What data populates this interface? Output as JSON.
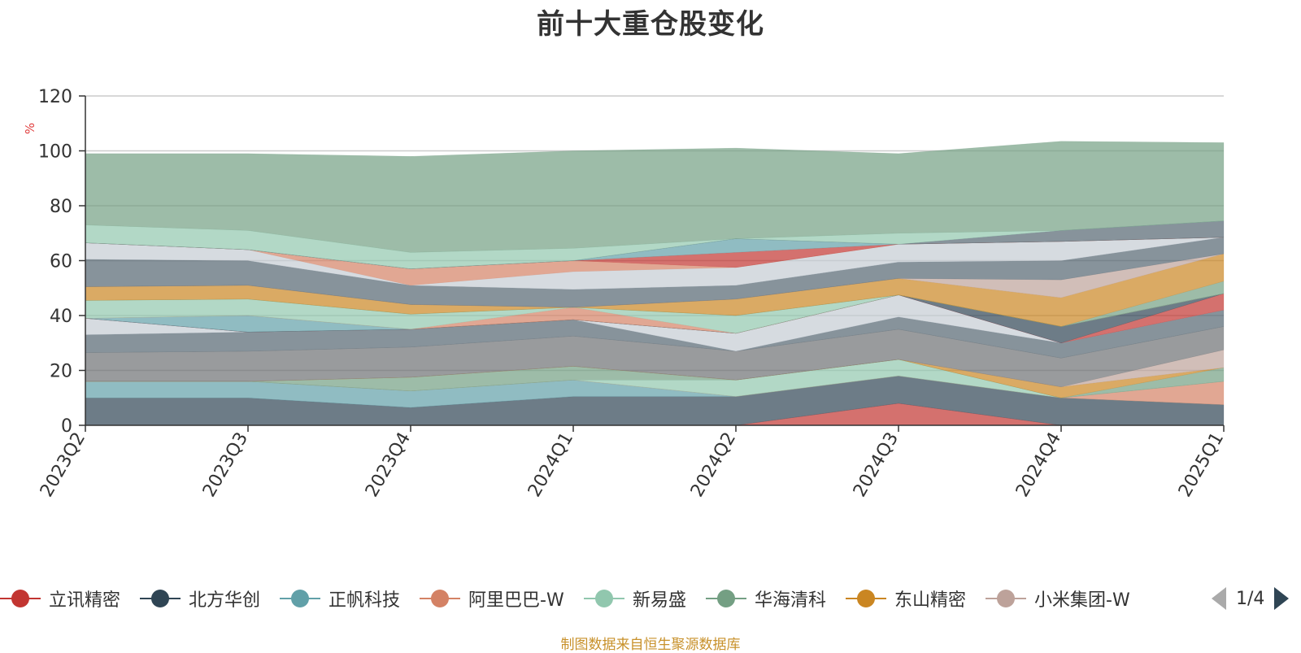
{
  "page": {
    "title": "前十大重仓股变化",
    "source": "制图数据来自恒生聚源数据库",
    "legend_pager": "1/4"
  },
  "colors": {
    "grid": "#cccccc",
    "axis": "#333333",
    "unit": "#e03c3c"
  },
  "chart_data": {
    "type": "area",
    "stacked": true,
    "title": "前十大重仓股变化",
    "x": [
      "2023Q2",
      "2023Q3",
      "2023Q4",
      "2024Q1",
      "2024Q2",
      "2024Q3",
      "2024Q4",
      "2025Q1"
    ],
    "y_unit": "%",
    "ylim": [
      0,
      120
    ],
    "yticks": [
      0,
      20,
      40,
      60,
      80,
      100,
      120
    ],
    "grid": true,
    "legend_position": "bottom",
    "series": [
      {
        "name": "立讯精密",
        "color": "#c23531",
        "values": [
          0,
          0,
          0,
          0,
          0,
          8,
          0,
          0
        ]
      },
      {
        "name": "北方华创",
        "color": "#2f4554",
        "values": [
          10,
          10,
          6.5,
          10.5,
          10.5,
          10,
          10,
          7.5
        ]
      },
      {
        "name": "正帆科技",
        "color": "#61a0a8",
        "values": [
          6,
          6,
          6,
          6,
          0,
          0,
          0,
          0
        ]
      },
      {
        "name": "阿里巴巴-W",
        "color": "#d48265",
        "values": [
          0,
          0,
          0,
          0,
          0,
          0,
          0,
          8.5
        ]
      },
      {
        "name": "新易盛",
        "color": "#91c7ae",
        "values": [
          0,
          0,
          0,
          0,
          6,
          6,
          0,
          0
        ]
      },
      {
        "name": "华海清科",
        "color": "#749f83",
        "values": [
          0,
          0,
          5,
          5,
          0,
          0,
          0,
          5
        ]
      },
      {
        "name": "东山精密",
        "color": "#ca8622",
        "values": [
          0,
          0,
          0,
          0,
          0,
          0,
          4,
          0
        ]
      },
      {
        "name": "小米集团-W",
        "color": "#bda29a",
        "values": [
          0,
          0,
          0,
          0,
          0,
          0,
          0,
          6.5
        ]
      },
      {
        "name": "",
        "color": "#6e7074",
        "values": [
          10.5,
          11,
          11,
          11,
          10.5,
          11,
          10.5,
          8.5
        ]
      },
      {
        "name": "",
        "color": "#546570",
        "values": [
          6.5,
          7,
          6.5,
          6,
          0,
          4.5,
          5.5,
          6
        ]
      },
      {
        "name": "",
        "color": "#c4ccd3",
        "values": [
          6,
          0,
          0,
          0,
          6.5,
          8,
          0,
          0
        ]
      },
      {
        "name": "",
        "color": "#c23531",
        "values": [
          0,
          0,
          0,
          0,
          0,
          0,
          0,
          6
        ]
      },
      {
        "name": "",
        "color": "#2f4554",
        "values": [
          0,
          0,
          0,
          0,
          0,
          0,
          6,
          0
        ]
      },
      {
        "name": "",
        "color": "#61a0a8",
        "values": [
          0,
          6,
          0,
          0,
          0,
          0,
          0,
          0
        ]
      },
      {
        "name": "",
        "color": "#d48265",
        "values": [
          0,
          0,
          0,
          4.5,
          0,
          0,
          0,
          0
        ]
      },
      {
        "name": "",
        "color": "#91c7ae",
        "values": [
          6.5,
          6,
          5.5,
          0,
          6.5,
          0,
          0,
          0
        ]
      },
      {
        "name": "",
        "color": "#749f83",
        "values": [
          0,
          0,
          0,
          0,
          0,
          0,
          0,
          4.5
        ]
      },
      {
        "name": "",
        "color": "#ca8622",
        "values": [
          5,
          5,
          3.5,
          0,
          6,
          6,
          10.5,
          10
        ]
      },
      {
        "name": "",
        "color": "#bda29a",
        "values": [
          0,
          0,
          0,
          0,
          0,
          0,
          6.5,
          0
        ]
      },
      {
        "name": "",
        "color": "#546570",
        "values": [
          10,
          9,
          7,
          6.5,
          5,
          6,
          7,
          6
        ]
      },
      {
        "name": "",
        "color": "#c4ccd3",
        "values": [
          6,
          4,
          0,
          6.5,
          6.5,
          6.5,
          7,
          0
        ]
      },
      {
        "name": "",
        "color": "#d48265",
        "values": [
          0,
          0,
          6,
          4,
          0,
          0,
          0,
          0
        ]
      },
      {
        "name": "",
        "color": "#c23531",
        "values": [
          0,
          0,
          0,
          0,
          5.5,
          0,
          0,
          0
        ]
      },
      {
        "name": "",
        "color": "#61a0a8",
        "values": [
          0,
          0,
          0,
          0,
          5,
          0,
          0,
          0
        ]
      },
      {
        "name": "",
        "color": "#546570",
        "values": [
          0,
          0,
          0,
          0,
          0,
          0,
          4,
          6
        ]
      },
      {
        "name": "",
        "color": "#91c7ae",
        "values": [
          6.5,
          7,
          6,
          4.5,
          0,
          4,
          0,
          0
        ]
      },
      {
        "name": "",
        "color": "#749f83",
        "values": [
          26,
          28,
          35,
          35.5,
          33,
          29,
          32.5,
          28.5
        ]
      }
    ]
  }
}
